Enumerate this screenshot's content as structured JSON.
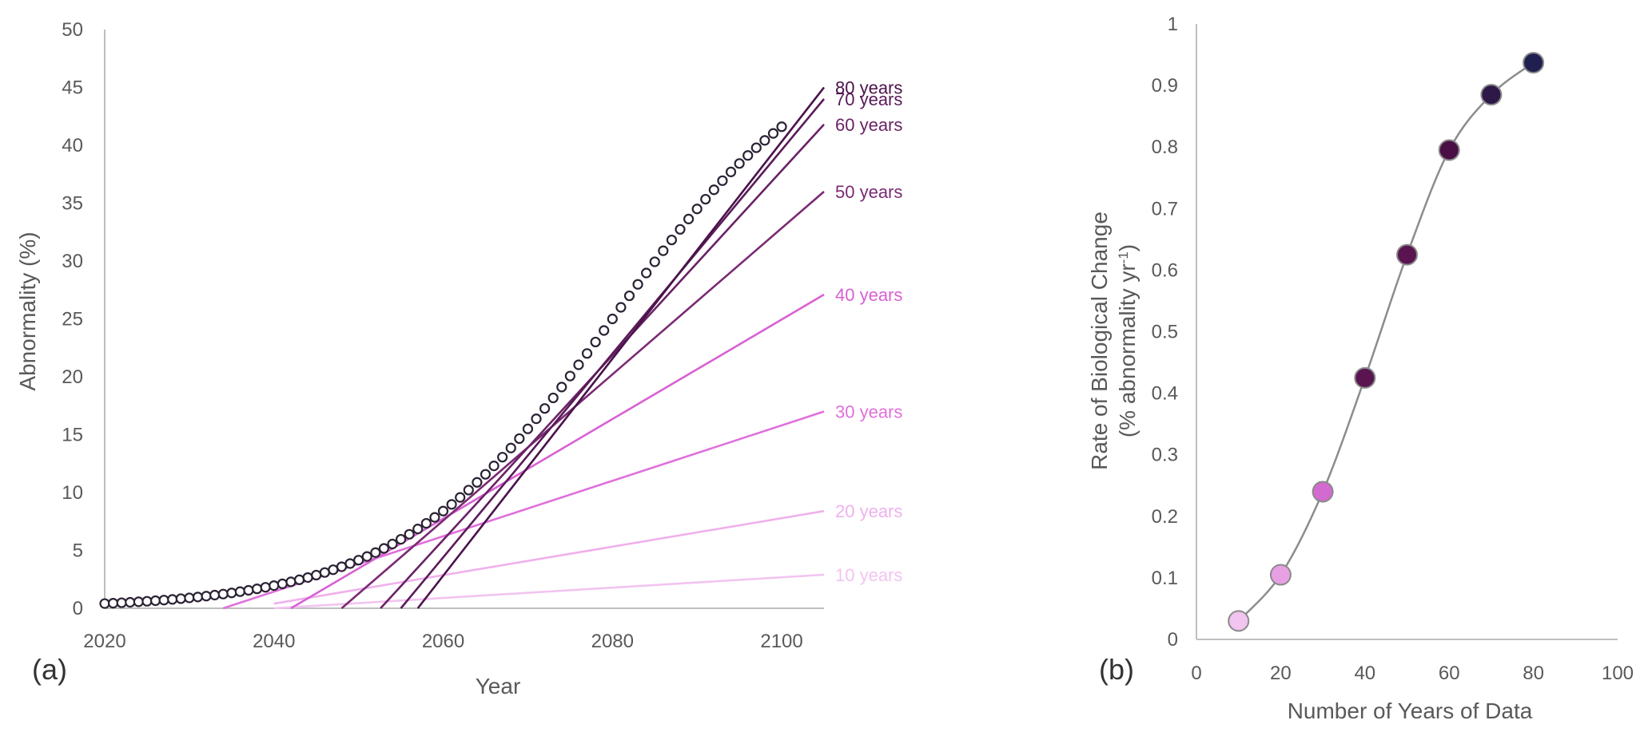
{
  "chart_data": [
    {
      "type": "line",
      "panel_label": "(a)",
      "xlabel": "Year",
      "ylabel": "Abnormality (%)",
      "xlim": [
        2020,
        2105
      ],
      "ylim": [
        0,
        50
      ],
      "x_ticks": [
        2020,
        2040,
        2060,
        2080,
        2100
      ],
      "y_ticks": [
        0,
        5,
        10,
        15,
        20,
        25,
        30,
        35,
        40,
        45,
        50
      ],
      "observed": {
        "name": "Abnormality",
        "marker": "open-circle",
        "x_start": 2020,
        "x_end": 2100,
        "x_step": 1,
        "curve": "logistic",
        "plateau": 50,
        "growth_rate": 0.08,
        "midpoint_year": 2080
      },
      "trend_lines": [
        {
          "label": "10 years",
          "x": [
            2040,
            2105
          ],
          "y": [
            0.0,
            2.9
          ],
          "color": "#f2c4f0"
        },
        {
          "label": "20 years",
          "x": [
            2040,
            2105
          ],
          "y": [
            0.4,
            8.4
          ],
          "color": "#f0b0ec"
        },
        {
          "label": "30 years",
          "x": [
            2034,
            2105
          ],
          "y": [
            0.0,
            17.0
          ],
          "color": "#e070dc"
        },
        {
          "label": "40 years",
          "x": [
            2042,
            2105
          ],
          "y": [
            0.0,
            27.1
          ],
          "color": "#d860d4"
        },
        {
          "label": "50 years",
          "x": [
            2048,
            2105
          ],
          "y": [
            0.0,
            36.0
          ],
          "color": "#7a2a72"
        },
        {
          "label": "60 years",
          "x": [
            2052.6,
            2105
          ],
          "y": [
            0.0,
            41.8
          ],
          "color": "#6a2266"
        },
        {
          "label": "70 years",
          "x": [
            2055,
            2105
          ],
          "y": [
            0.0,
            44.0
          ],
          "color": "#5a1a58"
        },
        {
          "label": "80 years",
          "x": [
            2057,
            2105
          ],
          "y": [
            0.0,
            45.0
          ],
          "color": "#4a124a"
        }
      ]
    },
    {
      "type": "scatter",
      "panel_label": "(b)",
      "xlabel": "Number of Years of Data",
      "ylabel_line1": "Rate of Biological Change",
      "ylabel_line2_prefix": "(% abnormality yr",
      "ylabel_line2_sup": "-1",
      "ylabel_line2_suffix": ")",
      "xlim": [
        0,
        100
      ],
      "ylim": [
        0,
        1
      ],
      "x_ticks": [
        0,
        20,
        40,
        60,
        80,
        100
      ],
      "y_ticks": [
        0,
        0.1,
        0.2,
        0.3,
        0.4,
        0.5,
        0.6,
        0.7,
        0.8,
        0.9,
        1
      ],
      "y_tick_labels": [
        "0",
        "0.1",
        "0.2",
        "0.3",
        "0.4",
        "0.5",
        "0.6",
        "0.7",
        "0.8",
        "0.9",
        "1"
      ],
      "points": [
        {
          "x": 10,
          "y": 0.03,
          "color": "#f2c4f0"
        },
        {
          "x": 20,
          "y": 0.105,
          "color": "#e8a0e4"
        },
        {
          "x": 30,
          "y": 0.24,
          "color": "#d36ad0"
        },
        {
          "x": 40,
          "y": 0.425,
          "color": "#5a1450"
        },
        {
          "x": 50,
          "y": 0.625,
          "color": "#5a1450"
        },
        {
          "x": 60,
          "y": 0.795,
          "color": "#4a0f45"
        },
        {
          "x": 70,
          "y": 0.885,
          "color": "#2e1848"
        },
        {
          "x": 80,
          "y": 0.937,
          "color": "#202050"
        }
      ],
      "smooth_curve": true,
      "curve_color": "#8c8c8c"
    }
  ]
}
